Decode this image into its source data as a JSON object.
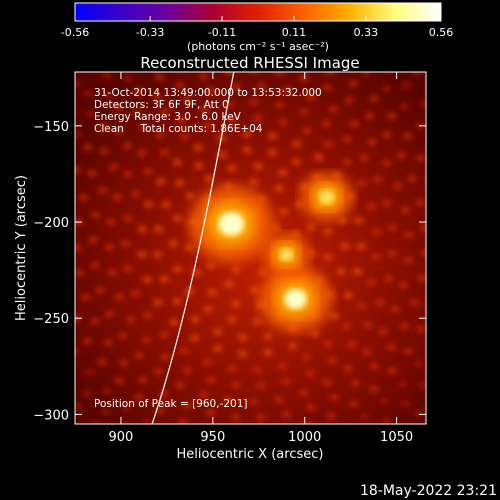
{
  "colorbar": {
    "ticks": [
      -0.56,
      -0.33,
      -0.11,
      0.11,
      0.33,
      0.56
    ],
    "tick_labels": [
      "-0.56",
      "-0.33",
      "-0.11",
      "0.11",
      "0.33",
      "0.56"
    ],
    "units_label": "(photons cm⁻² s⁻¹ asec⁻²)",
    "colormap": [
      "#0000ff",
      "#3a00c8",
      "#6a00a0",
      "#aa0030",
      "#e02000",
      "#ff6000",
      "#ffb000",
      "#ffff80",
      "#ffffff"
    ]
  },
  "chart_data": {
    "type": "heatmap",
    "title": "Reconstructed RHESSI Image",
    "xlabel": "Heliocentric X (arcsec)",
    "ylabel": "Heliocentric Y (arcsec)",
    "xlim": [
      875,
      1066
    ],
    "ylim": [
      -305,
      -122
    ],
    "xticks": [
      900,
      950,
      1000,
      1050
    ],
    "yticks": [
      -150,
      -200,
      -250,
      -300
    ],
    "sources": [
      {
        "x": 960,
        "y": -201,
        "intensity": 0.56
      },
      {
        "x": 995,
        "y": -240,
        "intensity": 0.46
      },
      {
        "x": 1012,
        "y": -187,
        "intensity": 0.3
      },
      {
        "x": 990,
        "y": -217,
        "intensity": 0.25
      }
    ],
    "annotations": [
      "31-Oct-2014 13:49:00.000 to 13:53:32.000",
      "Detectors: 3F 6F 9F, Att 0",
      "Energy Range: 3.0 - 6.0 keV",
      "Clean     Total counts: 1.86E+04"
    ],
    "peak_label": "Position of Peak = [960,-201]"
  },
  "footer_timestamp": "18-May-2022 23:21"
}
